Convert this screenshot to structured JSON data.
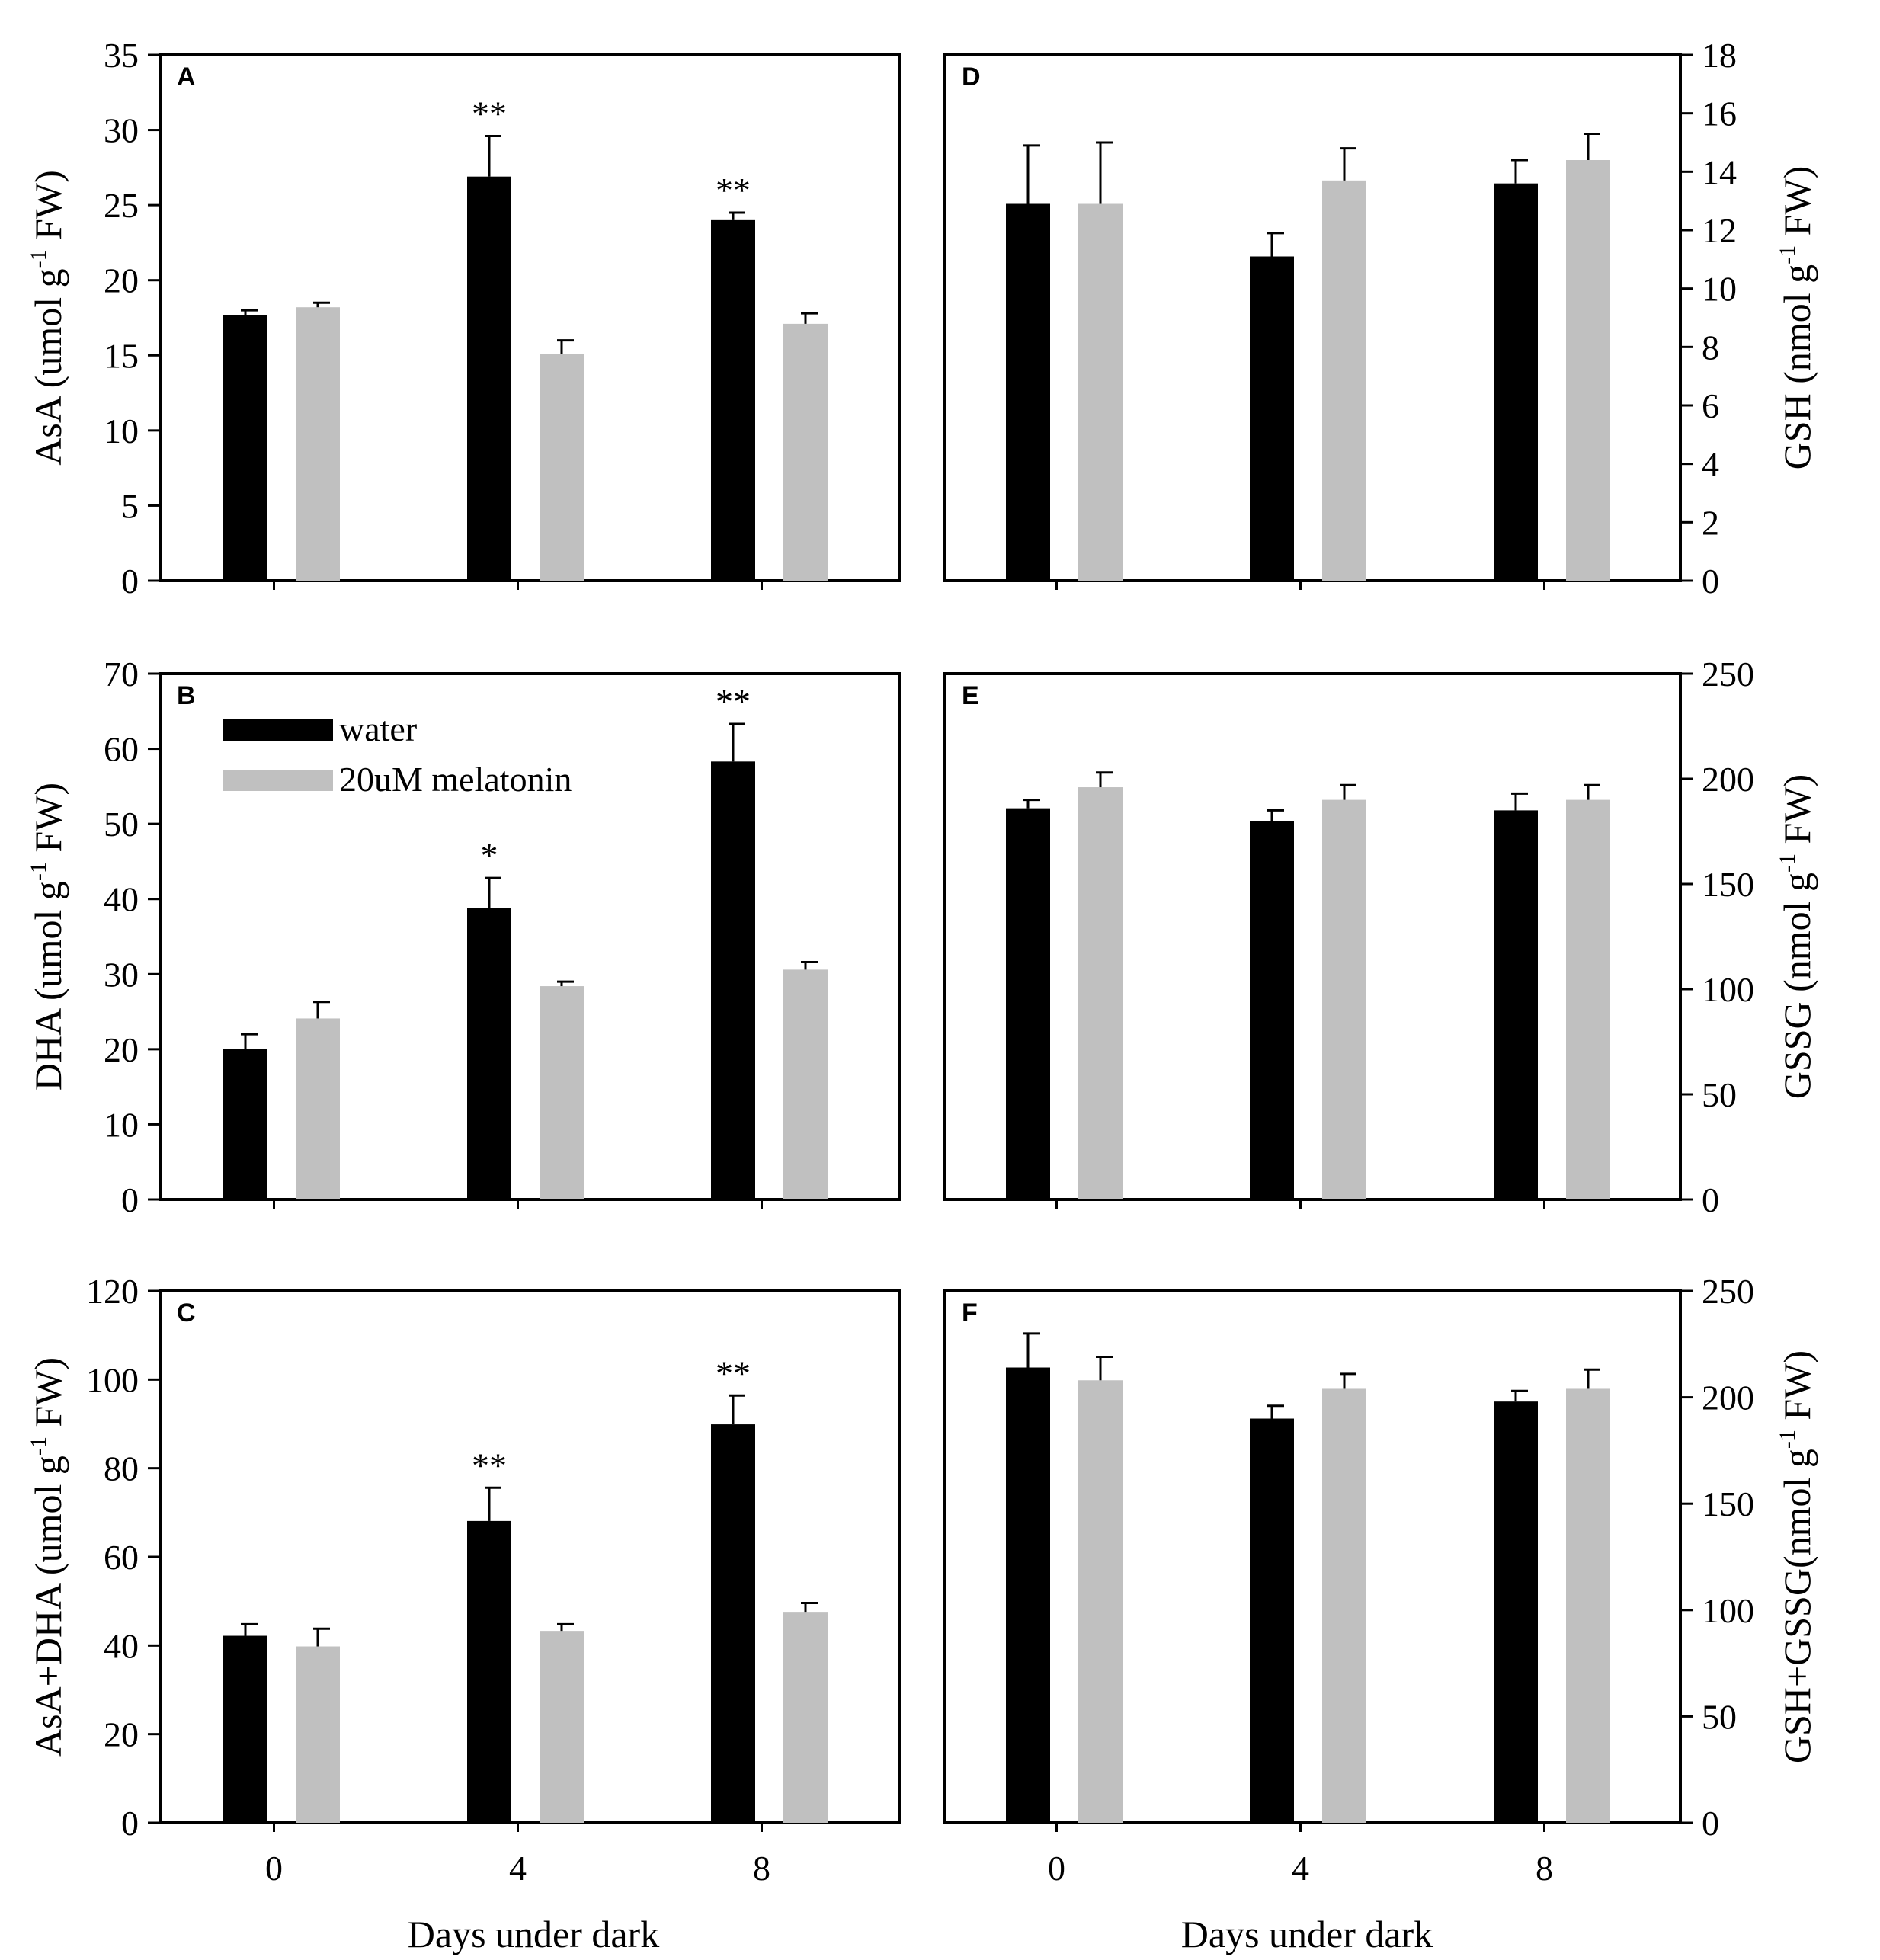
{
  "figure": {
    "water_color": "#000000",
    "melatonin_color": "#c0c0c0",
    "legend": {
      "water_label": "water",
      "melatonin_label": "20uM melatonin"
    },
    "x_categories": [
      "0",
      "4",
      "8"
    ],
    "xlabel_left": "Days under dark",
    "xlabel_right": "Days under dark"
  },
  "chart_data": [
    {
      "panel": "A",
      "type": "bar",
      "side": "left",
      "ylabel": "AsA (umol g",
      "ylabel_sup": "-1",
      "ylabel_tail": " FW)",
      "ylim": [
        0,
        35
      ],
      "yticks": [
        0,
        5,
        10,
        15,
        20,
        25,
        30,
        35
      ],
      "categories": [
        "0",
        "4",
        "8"
      ],
      "series": [
        {
          "name": "water",
          "values": [
            17.7,
            26.9,
            24.0
          ],
          "errors": [
            0.3,
            2.7,
            0.5
          ]
        },
        {
          "name": "20uM melatonin",
          "values": [
            18.2,
            15.1,
            17.1
          ],
          "errors": [
            0.3,
            0.9,
            0.7
          ]
        }
      ],
      "annotations": [
        "**",
        "**"
      ]
    },
    {
      "panel": "B",
      "type": "bar",
      "side": "left",
      "ylabel": "DHA (umol g",
      "ylabel_sup": "-1",
      "ylabel_tail": " FW)",
      "ylim": [
        0,
        70
      ],
      "yticks": [
        0,
        10,
        20,
        30,
        40,
        50,
        60,
        70
      ],
      "categories": [
        "0",
        "4",
        "8"
      ],
      "series": [
        {
          "name": "water",
          "values": [
            20.0,
            38.8,
            58.3
          ],
          "errors": [
            2.0,
            4.0,
            5.0
          ]
        },
        {
          "name": "20uM melatonin",
          "values": [
            24.1,
            28.4,
            30.6
          ],
          "errors": [
            2.2,
            0.6,
            1.0
          ]
        }
      ],
      "annotations": [
        "*",
        "**"
      ]
    },
    {
      "panel": "C",
      "type": "bar",
      "side": "left",
      "ylabel": "AsA+DHA (umol g",
      "ylabel_sup": "-1",
      "ylabel_tail": " FW)",
      "ylim": [
        0,
        120
      ],
      "yticks": [
        0,
        20,
        40,
        60,
        80,
        100,
        120
      ],
      "categories": [
        "0",
        "4",
        "8"
      ],
      "series": [
        {
          "name": "water",
          "values": [
            42.2,
            68.1,
            89.9
          ],
          "errors": [
            2.6,
            7.5,
            6.5
          ]
        },
        {
          "name": "20uM melatonin",
          "values": [
            39.8,
            43.3,
            47.6
          ],
          "errors": [
            4.0,
            1.5,
            2.0
          ]
        }
      ],
      "annotations": [
        "**",
        "**"
      ]
    },
    {
      "panel": "D",
      "type": "bar",
      "side": "right",
      "ylabel": "GSH (nmol g",
      "ylabel_sup": "-1",
      "ylabel_tail": " FW)",
      "ylim": [
        0,
        18
      ],
      "yticks": [
        0,
        2,
        4,
        6,
        8,
        10,
        12,
        14,
        16,
        18
      ],
      "categories": [
        "0",
        "4",
        "8"
      ],
      "series": [
        {
          "name": "water",
          "values": [
            12.9,
            11.1,
            13.6
          ],
          "errors": [
            2.0,
            0.8,
            0.8
          ]
        },
        {
          "name": "20uM melatonin",
          "values": [
            12.9,
            13.7,
            14.4
          ],
          "errors": [
            2.1,
            1.1,
            0.9
          ]
        }
      ],
      "annotations": []
    },
    {
      "panel": "E",
      "type": "bar",
      "side": "right",
      "ylabel": "GSSG (nmol g",
      "ylabel_sup": "-1",
      "ylabel_tail": " FW)",
      "ylim": [
        0,
        250
      ],
      "yticks": [
        0,
        50,
        100,
        150,
        200,
        250
      ],
      "categories": [
        "0",
        "4",
        "8"
      ],
      "series": [
        {
          "name": "water",
          "values": [
            186,
            180,
            185
          ],
          "errors": [
            4,
            5,
            8
          ]
        },
        {
          "name": "20uM melatonin",
          "values": [
            196,
            190,
            190
          ],
          "errors": [
            7,
            7,
            7
          ]
        }
      ],
      "annotations": []
    },
    {
      "panel": "F",
      "type": "bar",
      "side": "right",
      "ylabel": "GSH+GSSG(nmol g",
      "ylabel_sup": "-1",
      "ylabel_tail": " FW)",
      "ylim": [
        0,
        250
      ],
      "yticks": [
        0,
        50,
        100,
        150,
        200,
        250
      ],
      "categories": [
        "0",
        "4",
        "8"
      ],
      "series": [
        {
          "name": "water",
          "values": [
            214,
            190,
            198
          ],
          "errors": [
            16,
            6,
            5
          ]
        },
        {
          "name": "20uM melatonin",
          "values": [
            208,
            204,
            204
          ],
          "errors": [
            11,
            7,
            9
          ]
        }
      ],
      "annotations": []
    }
  ]
}
